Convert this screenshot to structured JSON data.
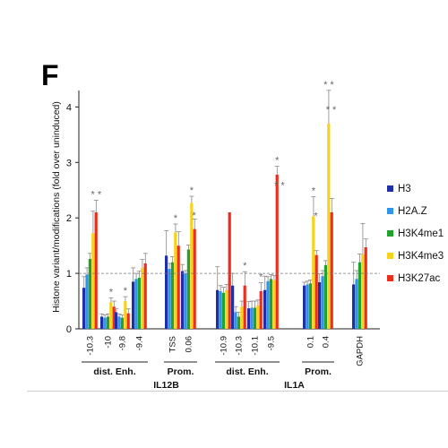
{
  "panel_label": "F",
  "chart_data": {
    "type": "bar",
    "title": "",
    "ylabel": "Histone variant/modifications (fold over uninduced)",
    "xlabel": "",
    "ylim": [
      0,
      4.2
    ],
    "yticks": [
      0,
      1,
      2,
      3,
      4
    ],
    "baseline": 1,
    "grid": false,
    "legend_position": "right",
    "categories": [
      "-10.3",
      "-10",
      "-9.8",
      "-9.4",
      "TSS",
      "0.06",
      "-10.9",
      "-10.3",
      "-10.1",
      "-9.5",
      "0.1",
      "0.4",
      "GAPDH"
    ],
    "series": [
      {
        "name": "H3",
        "color": "#1f2fa8",
        "values": [
          0.74,
          0.22,
          0.3,
          0.85,
          1.32,
          1.04,
          0.7,
          0.78,
          0.37,
          0.7,
          0.78,
          0.84,
          0.8
        ],
        "errors": [
          0.2,
          0.05,
          0.06,
          0.25,
          0.45,
          0.12,
          0.42,
          0.22,
          0.12,
          0.25,
          0.06,
          0.15,
          0.4
        ]
      },
      {
        "name": "H2A.Z",
        "color": "#2f95e8",
        "values": [
          0.98,
          0.2,
          0.22,
          0.9,
          1.08,
          1.0,
          0.68,
          0.3,
          0.38,
          0.86,
          0.8,
          0.95,
          0.9
        ],
        "errors": [
          0.12,
          0.05,
          0.05,
          0.1,
          0.1,
          0.05,
          0.1,
          0.1,
          0.12,
          0.08,
          0.06,
          0.1,
          0.15
        ]
      },
      {
        "name": "H3K4me1",
        "color": "#23a12e",
        "values": [
          1.26,
          0.22,
          0.2,
          0.92,
          1.2,
          1.43,
          0.65,
          0.22,
          0.38,
          0.9,
          0.82,
          1.15,
          1.2
        ],
        "errors": [
          0.1,
          0.05,
          0.05,
          0.12,
          0.1,
          0.08,
          0.1,
          0.08,
          0.12,
          0.08,
          0.06,
          0.08,
          0.15
        ]
      },
      {
        "name": "H3K4me3",
        "color": "#f5d21e",
        "values": [
          1.72,
          0.48,
          0.5,
          1.1,
          1.74,
          2.27,
          0.7,
          0.4,
          0.42,
          0.88,
          2.03,
          3.7,
          1.35
        ],
        "errors": [
          0.4,
          0.08,
          0.08,
          0.15,
          0.15,
          0.12,
          0.1,
          0.1,
          0.1,
          0.08,
          0.35,
          0.6,
          0.55
        ]
      },
      {
        "name": "H3K27ac",
        "color": "#ec2d1b",
        "values": [
          2.1,
          0.4,
          0.28,
          1.18,
          1.5,
          1.8,
          2.1,
          0.78,
          0.68,
          2.78,
          1.33,
          2.1,
          1.47
        ],
        "errors": [
          0.22,
          0.1,
          0.08,
          0.18,
          0.25,
          0.18,
          0.0,
          0.25,
          0.15,
          0.15,
          0.08,
          0.25,
          0.15
        ]
      }
    ],
    "significance": [
      {
        "label": "* *",
        "category": 0
      },
      {
        "label": "*",
        "category": 1
      },
      {
        "label": "*",
        "category": 2
      },
      {
        "label": "*",
        "category": 4
      },
      {
        "label": "*",
        "category": 5
      },
      {
        "label": "*",
        "category": 5
      },
      {
        "label": "*",
        "category": 7
      },
      {
        "label": "*",
        "category": 8
      },
      {
        "label": "*",
        "category": 9
      },
      {
        "label": "* *",
        "category": 9
      },
      {
        "label": "*",
        "category": 10
      },
      {
        "label": "*",
        "category": 10
      },
      {
        "label": "* *",
        "category": 11
      },
      {
        "label": "* *",
        "category": 11
      }
    ],
    "groups": [
      {
        "label": "dist. Enh.",
        "first": 0,
        "last": 3
      },
      {
        "label": "Prom.",
        "first": 4,
        "last": 5
      },
      {
        "label": "dist. Enh.",
        "first": 6,
        "last": 9
      },
      {
        "label": "Prom.",
        "first": 10,
        "last": 11
      }
    ],
    "genes": [
      {
        "label": "IL12B",
        "first": 0,
        "last": 5
      },
      {
        "label": "IL1A",
        "first": 6,
        "last": 11
      }
    ]
  }
}
